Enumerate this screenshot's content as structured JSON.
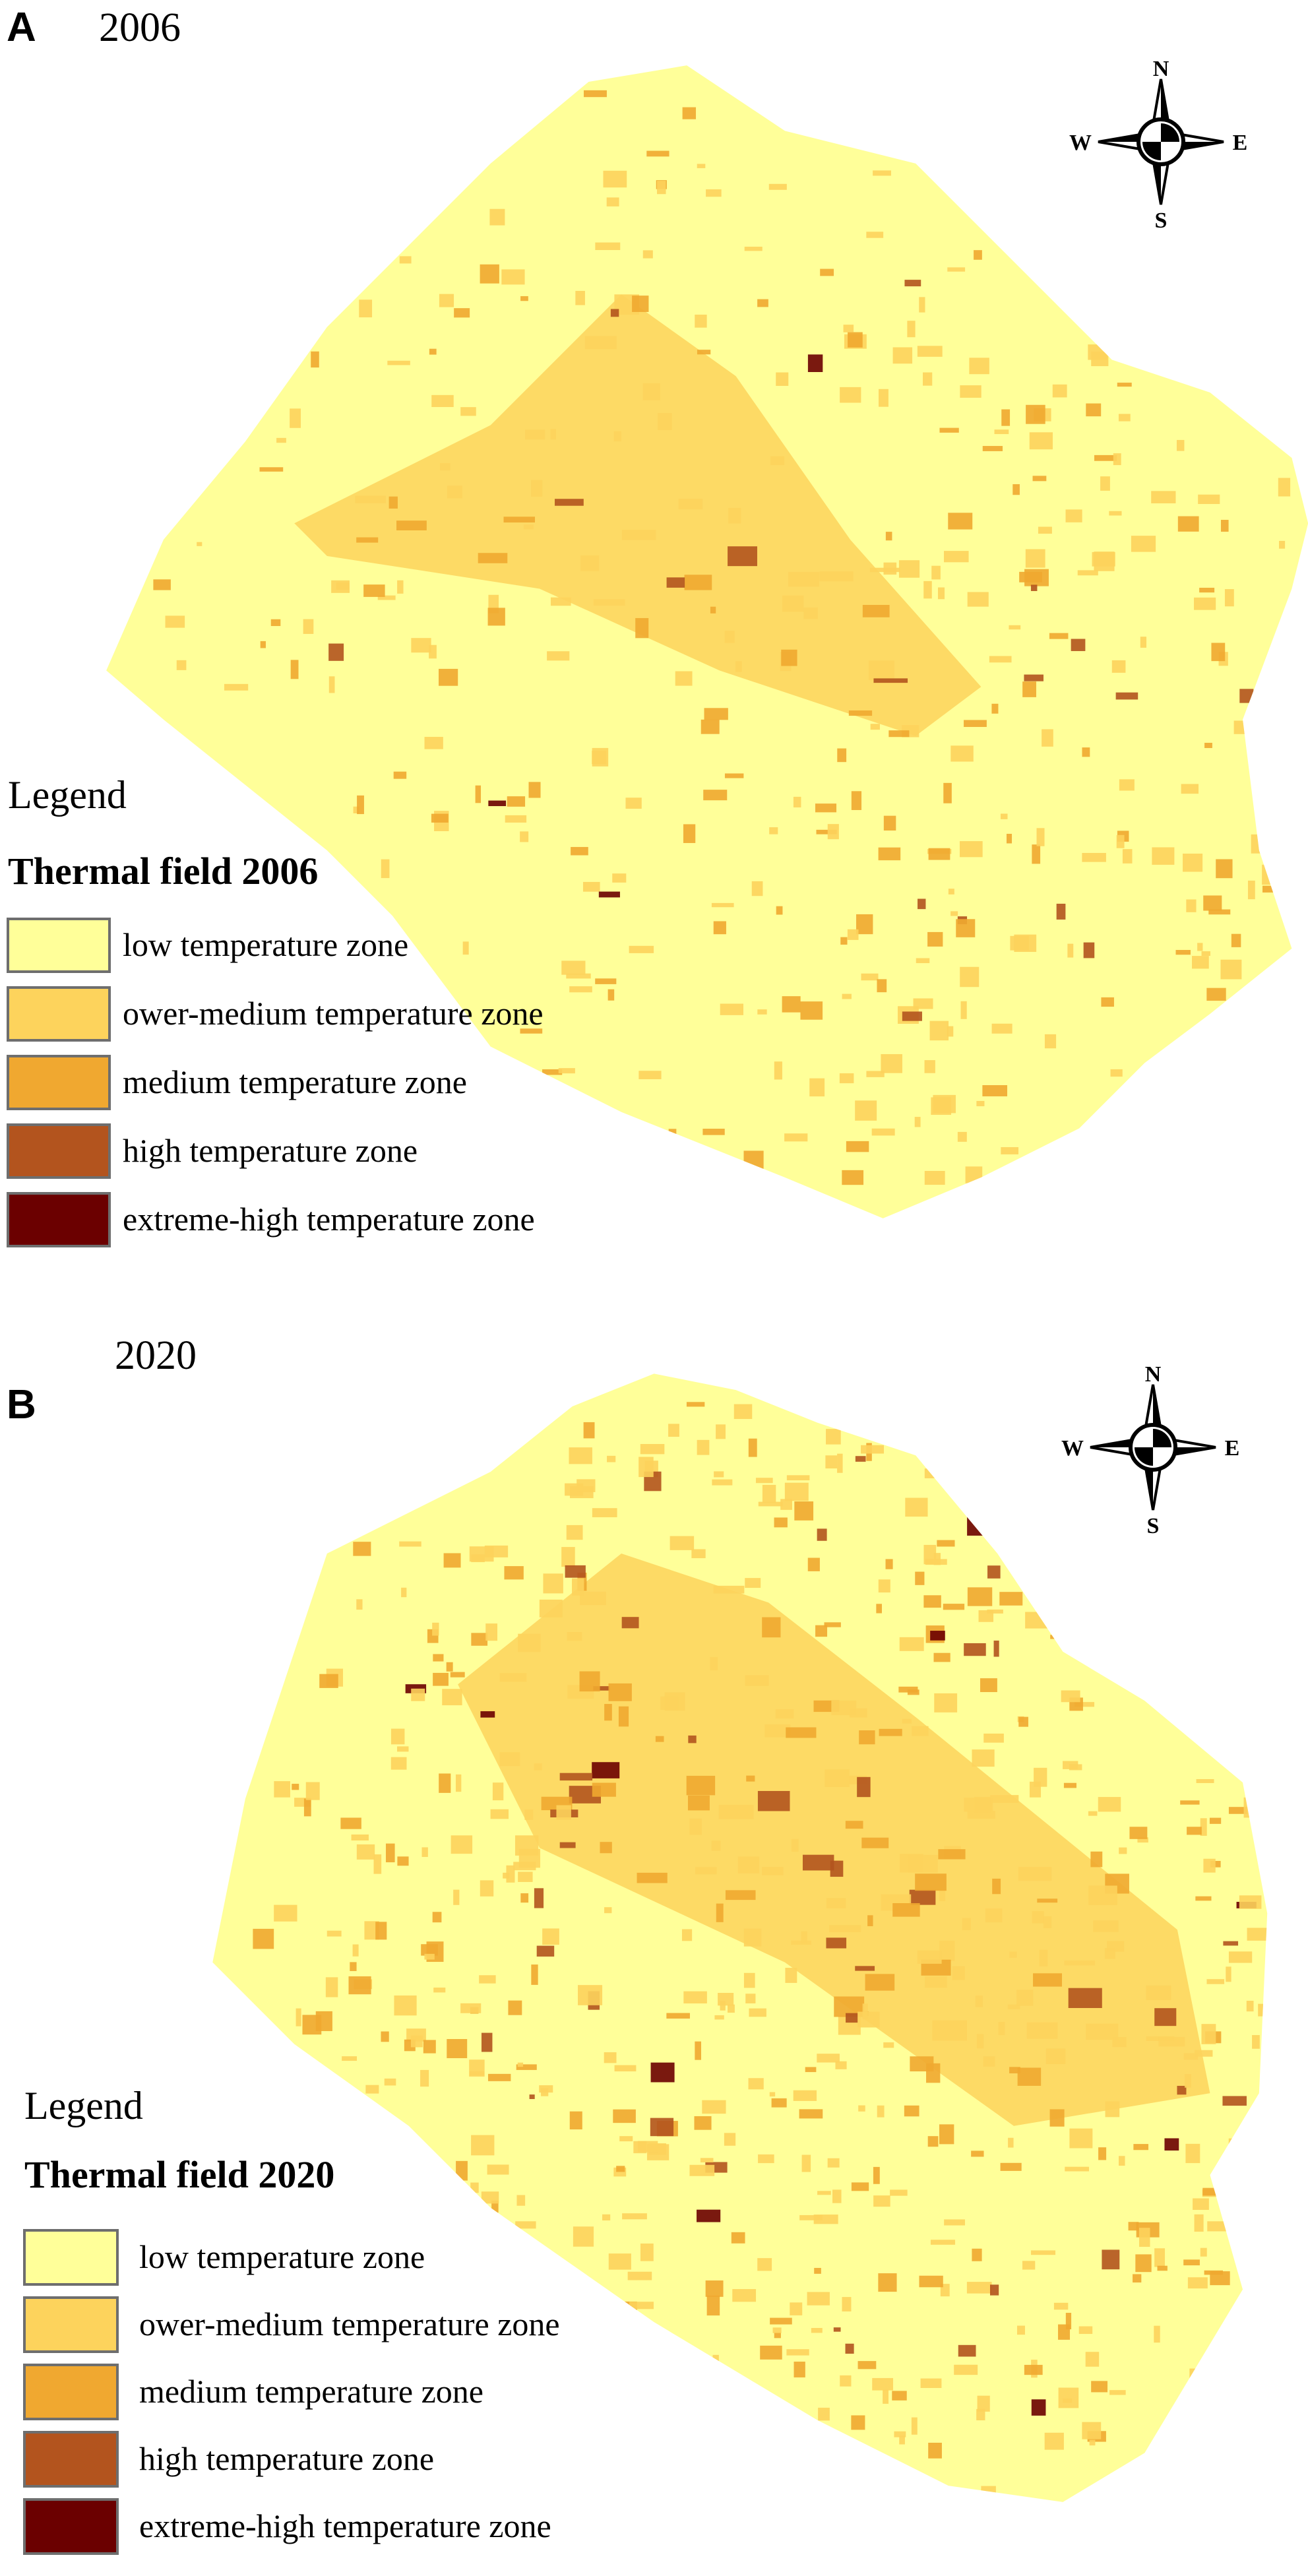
{
  "panels": [
    {
      "label": "A",
      "year": "2006",
      "compass": {
        "n": "N",
        "s": "S",
        "e": "E",
        "w": "W"
      },
      "legend": {
        "title": "Legend",
        "subtitle": "Thermal field 2006",
        "items": [
          {
            "label": "low temperature zone",
            "color": "#ffff99"
          },
          {
            "label": "ower-medium temperature zone",
            "color": "#fdd35c"
          },
          {
            "label": "medium temperature zone",
            "color": "#f0a830"
          },
          {
            "label": "high temperature zone",
            "color": "#b3541e"
          },
          {
            "label": "extreme-high temperature zone",
            "color": "#6b0000"
          }
        ]
      }
    },
    {
      "label": "B",
      "year": "2020",
      "compass": {
        "n": "N",
        "s": "S",
        "e": "E",
        "w": "W"
      },
      "legend": {
        "title": "Legend",
        "subtitle": "Thermal field 2020",
        "items": [
          {
            "label": "low temperature zone",
            "color": "#ffff99"
          },
          {
            "label": "ower-medium temperature zone",
            "color": "#fdd35c"
          },
          {
            "label": "medium temperature zone",
            "color": "#f0a830"
          },
          {
            "label": "high temperature zone",
            "color": "#b3541e"
          },
          {
            "label": "extreme-high temperature zone",
            "color": "#6b0000"
          }
        ]
      }
    }
  ]
}
